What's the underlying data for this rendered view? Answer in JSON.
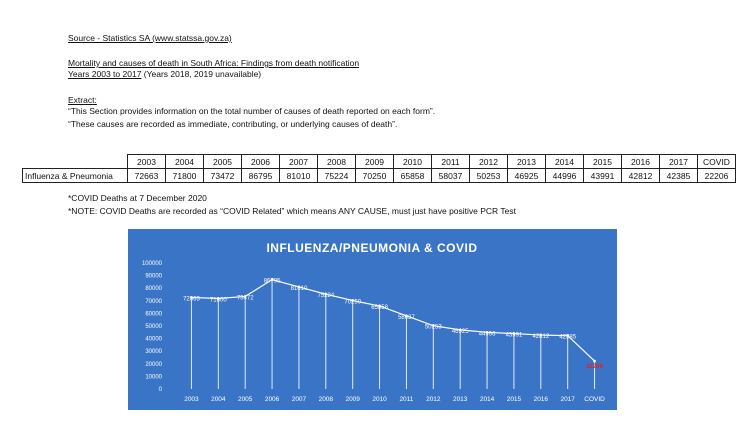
{
  "header": {
    "source": "Source - Statistics SA (www.statssa.gov.za)",
    "title_line1": "Mortality and causes of death in South Africa: Findings from death notification",
    "title_line2a": "Years 2003 to 2017",
    "title_line2b": " (Years 2018, 2019 unavailable)",
    "extract_label": "Extract:",
    "quote1": "“This Section provides information on the total number of causes of death reported on each form”.",
    "quote2": "“These causes are recorded as immediate, contributing, or underlying causes of death”."
  },
  "table": {
    "row_label": "Influenza & Pneumonia",
    "headers": [
      "2003",
      "2004",
      "2005",
      "2006",
      "2007",
      "2008",
      "2009",
      "2010",
      "2011",
      "2012",
      "2013",
      "2014",
      "2015",
      "2016",
      "2017",
      "COVID"
    ],
    "values": [
      "72663",
      "71800",
      "73472",
      "86795",
      "81010",
      "75224",
      "70250",
      "65858",
      "58037",
      "50253",
      "46925",
      "44996",
      "43991",
      "42812",
      "42385",
      "22206"
    ]
  },
  "notes": {
    "note1": "*COVID Deaths at 7 December 2020",
    "note2": "*NOTE: COVID Deaths are recorded as “COVID Related” which means ANY CAUSE, must just have positive PCR Test"
  },
  "chart_data": {
    "type": "line",
    "title": "INFLUENZA/PNEUMONIA & COVID",
    "categories": [
      "2003",
      "2004",
      "2005",
      "2006",
      "2007",
      "2008",
      "2009",
      "2010",
      "2011",
      "2012",
      "2013",
      "2014",
      "2015",
      "2016",
      "2017",
      "COVID"
    ],
    "values": [
      72663,
      71800,
      73472,
      86795,
      81010,
      75224,
      70250,
      65858,
      58037,
      50253,
      46925,
      44996,
      43991,
      42812,
      42385,
      22206
    ],
    "ylim": [
      0,
      100000
    ],
    "yticks": [
      "0",
      "10000",
      "20000",
      "30000",
      "40000",
      "50000",
      "60000",
      "70000",
      "80000",
      "90000",
      "100000"
    ],
    "grid": false,
    "colors": {
      "background": "#3a74c6",
      "line": "#ffffff",
      "text": "#ffffff",
      "highlight": "#d8242b"
    }
  }
}
